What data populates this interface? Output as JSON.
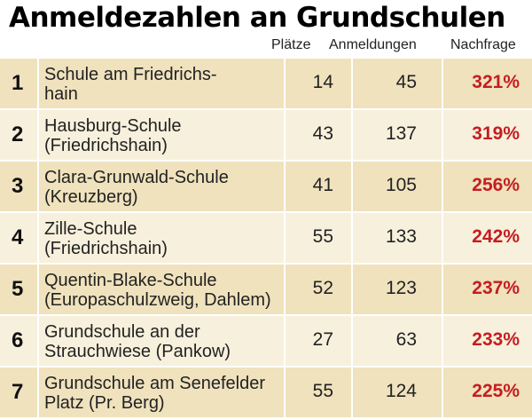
{
  "title": "Anmeldezahlen an Grundschulen",
  "headers": {
    "plaetze": "Plätze",
    "anmeldungen": "Anmeldungen",
    "nachfrage": "Nachfrage"
  },
  "colors": {
    "row_bg_dark": "#efe2bd",
    "row_bg_light": "#f7f0dc",
    "percent": "#c41d22"
  },
  "chart_data": {
    "type": "table",
    "title": "Anmeldezahlen an Grundschulen",
    "columns": [
      "",
      "",
      "Plätze",
      "Anmeldungen",
      "Nachfrage"
    ],
    "rows": [
      {
        "rank": "1",
        "name_line1": "Schule am Friedrichs-",
        "name_line2": "hain",
        "plaetze": "14",
        "anmeldungen": "45",
        "nachfrage": "321%"
      },
      {
        "rank": "2",
        "name_line1": "Hausburg-Schule",
        "name_line2": "(Friedrichshain)",
        "plaetze": "43",
        "anmeldungen": "137",
        "nachfrage": "319%"
      },
      {
        "rank": "3",
        "name_line1": "Clara-Grunwald-Schule",
        "name_line2": "(Kreuzberg)",
        "plaetze": "41",
        "anmeldungen": "105",
        "nachfrage": "256%"
      },
      {
        "rank": "4",
        "name_line1": "Zille-Schule",
        "name_line2": "(Friedrichshain)",
        "plaetze": "55",
        "anmeldungen": "133",
        "nachfrage": "242%"
      },
      {
        "rank": "5",
        "name_line1": "Quentin-Blake-Schule",
        "name_line2": "(Europaschulzweig, Dahlem)",
        "plaetze": "52",
        "anmeldungen": "123",
        "nachfrage": "237%"
      },
      {
        "rank": "6",
        "name_line1": "Grundschule an der",
        "name_line2": "Strauchwiese (Pankow)",
        "plaetze": "27",
        "anmeldungen": "63",
        "nachfrage": "233%"
      },
      {
        "rank": "7",
        "name_line1": "Grundschule am Senefelder",
        "name_line2": "Platz (Pr. Berg)",
        "plaetze": "55",
        "anmeldungen": "124",
        "nachfrage": "225%"
      }
    ]
  }
}
